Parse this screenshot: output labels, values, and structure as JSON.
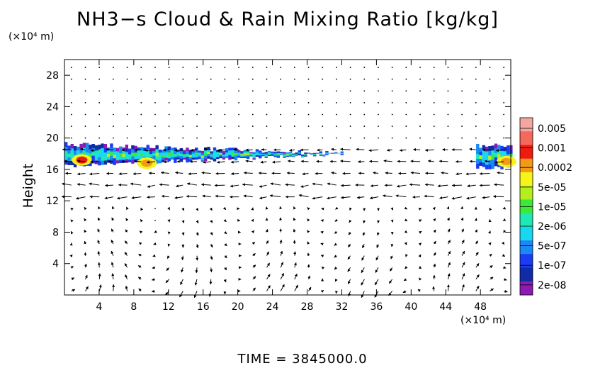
{
  "chart_data": {
    "type": "heatmap",
    "title": "NH3−s Cloud & Rain Mixing Ratio [kg/kg]",
    "xunit": "(×10⁴ m)",
    "yunit": "(×10⁴ m)",
    "ylabel": "Height",
    "footer": "TIME = 3845000.0",
    "xlim": [
      0,
      51.5
    ],
    "ylim": [
      0,
      30
    ],
    "xticks": [
      4,
      8,
      12,
      16,
      20,
      24,
      28,
      32,
      36,
      40,
      44,
      48
    ],
    "yticks": [
      4,
      8,
      12,
      16,
      20,
      24,
      28
    ],
    "colorbar": {
      "labels": [
        "0.005",
        "0.001",
        "0.0002",
        "5e-05",
        "1e-05",
        "2e-06",
        "5e-07",
        "1e-07",
        "2e-08"
      ],
      "colors": [
        "#f4a7a1",
        "#f36a5d",
        "#ee1c10",
        "#f49a14",
        "#f6f41a",
        "#b5ee1e",
        "#3ee83a",
        "#1ee8b5",
        "#18d7f0",
        "#1a88f5",
        "#1a3cf2",
        "#102ba6",
        "#8d1ab3"
      ]
    },
    "cloud_layer": {
      "main_band_x": [
        0,
        32.5
      ],
      "main_band_y": [
        16.2,
        19.5
      ],
      "right_band_x": [
        47.5,
        51.5
      ],
      "right_band_y": [
        16.0,
        19.3
      ],
      "cores": [
        {
          "x": 2,
          "y": 17.2,
          "level": "0.001"
        },
        {
          "x": 9.5,
          "y": 16.8,
          "level": "0.0002"
        },
        {
          "x": 51,
          "y": 17,
          "level": "0.0002"
        }
      ]
    }
  }
}
